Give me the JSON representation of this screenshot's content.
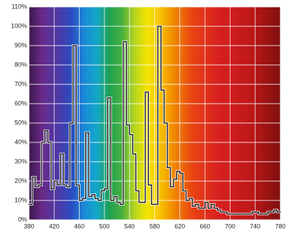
{
  "chart_data": {
    "type": "step",
    "x": [
      380,
      385,
      390,
      395,
      400,
      405,
      410,
      415,
      420,
      425,
      430,
      435,
      440,
      445,
      450,
      455,
      460,
      465,
      470,
      475,
      480,
      485,
      490,
      495,
      500,
      505,
      510,
      515,
      520,
      525,
      530,
      535,
      540,
      545,
      550,
      555,
      560,
      565,
      570,
      575,
      580,
      585,
      590,
      595,
      600,
      605,
      610,
      615,
      620,
      625,
      630,
      635,
      640,
      645,
      650,
      655,
      660,
      665,
      670,
      675,
      680,
      685,
      690,
      695,
      700,
      705,
      710,
      715,
      720,
      725,
      730,
      735,
      740,
      745,
      750,
      755,
      760,
      765,
      770,
      775
    ],
    "values": [
      8,
      22,
      17,
      18,
      40,
      46,
      40,
      16,
      20,
      18,
      34,
      18,
      17,
      50,
      90,
      18,
      10,
      11,
      45,
      12,
      13,
      11,
      10,
      15,
      16,
      63,
      10,
      12,
      9,
      8,
      92,
      49,
      44,
      34,
      15,
      9,
      9,
      66,
      18,
      8,
      8,
      100,
      67,
      50,
      27,
      17,
      21,
      25,
      24,
      15,
      10,
      11,
      7,
      8,
      6,
      6,
      9,
      6,
      8,
      6,
      5,
      4,
      4,
      3,
      3,
      3,
      3,
      3,
      3,
      3,
      3,
      4,
      4,
      3,
      3,
      3,
      4,
      4,
      5,
      4
    ],
    "color": "#000000",
    "xlim": [
      380,
      780
    ],
    "xticks": [
      380,
      420,
      460,
      500,
      540,
      580,
      620,
      660,
      700,
      740,
      780
    ],
    "ylim": [
      0,
      110
    ],
    "yticks": [
      {
        "value": 0,
        "label": "0%"
      },
      {
        "value": 10,
        "label": "10%"
      },
      {
        "value": 20,
        "label": "20%"
      },
      {
        "value": 30,
        "label": "30%"
      },
      {
        "value": 40,
        "label": "40%"
      },
      {
        "value": 50,
        "label": "50%"
      },
      {
        "value": 60,
        "label": "60%"
      },
      {
        "value": 70,
        "label": "70%"
      },
      {
        "value": 80,
        "label": "80%"
      },
      {
        "value": 90,
        "label": "90%"
      },
      {
        "value": 100,
        "label": "100%"
      },
      {
        "value": 110,
        "label": "110%"
      }
    ],
    "grid": true
  }
}
